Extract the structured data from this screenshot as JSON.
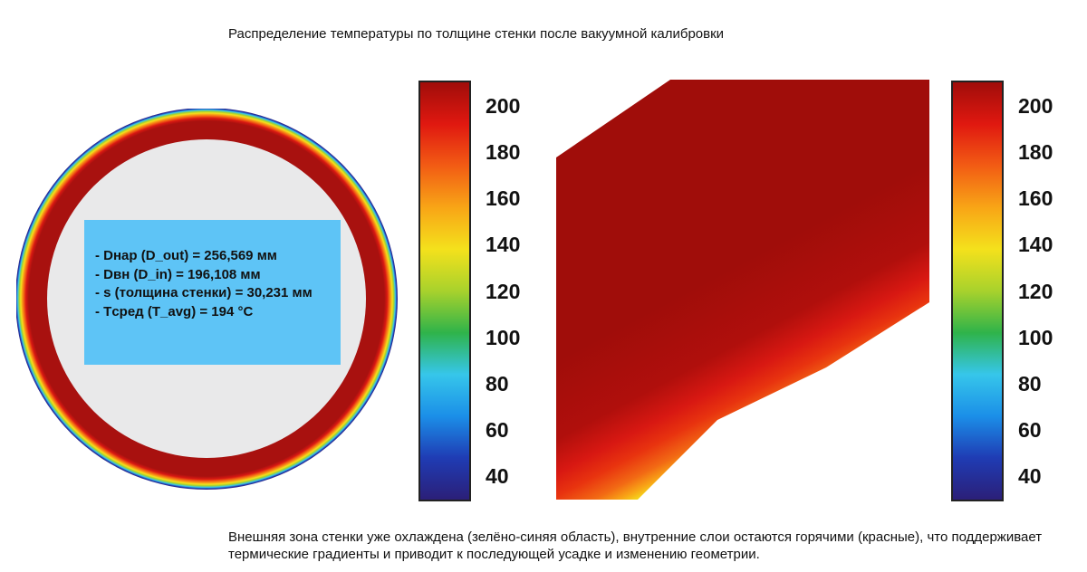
{
  "title": "Распределение температуры по толщине стенки после вакуумной калибровки",
  "info": {
    "lines": [
      "- Dнар (D_out) = 256,569 мм",
      "- Dвн (D_in) = 196,108 мм",
      "- s (толщина стенки) = 30,231 мм",
      "- Tсред (T_avg) = 194 °C"
    ]
  },
  "colorbar": {
    "min": 30,
    "max": 210,
    "ticks": [
      "200",
      "180",
      "160",
      "140",
      "120",
      "100",
      "80",
      "60",
      "40"
    ],
    "tick_values": [
      200,
      180,
      160,
      140,
      120,
      100,
      80,
      60,
      40
    ],
    "palette": [
      "#2b1f78",
      "#1f3cb4",
      "#1b8fe8",
      "#36c6ea",
      "#2fb34a",
      "#a8d22c",
      "#f4e11c",
      "#f8a516",
      "#f25c14",
      "#e01810",
      "#a00d0a"
    ]
  },
  "ring": {
    "inner_fill": "#e9e9ea",
    "hot_color": "#a8110f"
  },
  "caption": {
    "line1": "Внешняя зона стенки уже охлаждена (зелёно-синяя область), внутренние слои остаются горячими (красные), что поддерживает",
    "line2": "термические градиенты и приводит к последующей усадке и изменению геометрии."
  }
}
